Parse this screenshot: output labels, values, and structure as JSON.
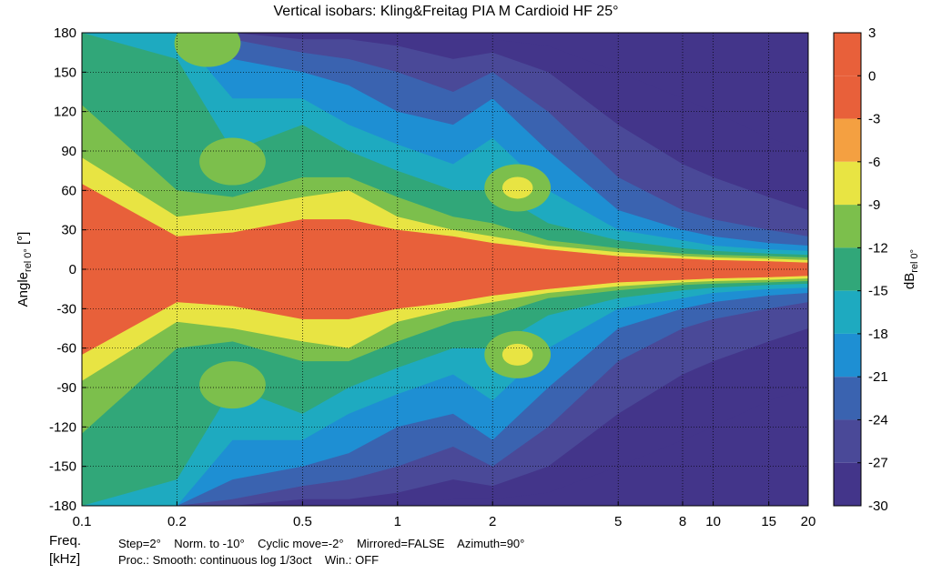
{
  "chart_data": {
    "type": "heatmap",
    "title": "Vertical isobars: Kling&Freitag  PIA M  Cardioid HF 25°",
    "xlabel": "Freq.",
    "xlabel_unit": "[kHz]",
    "ylabel_main": "Angle",
    "ylabel_sub": "rel 0°",
    "ylabel_unit": " [°]",
    "x_scale": "log",
    "xlim": [
      0.1,
      20
    ],
    "ylim": [
      -180,
      180
    ],
    "x_ticks": [
      0.1,
      0.2,
      0.5,
      1,
      2,
      5,
      8,
      10,
      15,
      20
    ],
    "x_tick_labels": [
      "0.1",
      "0.2",
      "0.5",
      "1",
      "2",
      "5",
      "8",
      "10",
      "15",
      "20"
    ],
    "y_ticks": [
      180,
      150,
      120,
      90,
      60,
      30,
      0,
      -30,
      -60,
      -90,
      -120,
      -150,
      -180
    ],
    "y_tick_labels": [
      "180",
      "150",
      "120",
      "90",
      "60",
      "30",
      "0",
      "-30",
      "-60",
      "-90",
      "-120",
      "-150",
      "-180"
    ],
    "grid": true,
    "colorbar": {
      "label_main": "dB",
      "label_sub": "rel 0°",
      "ticks": [
        3,
        0,
        -3,
        -6,
        -9,
        -12,
        -15,
        -18,
        -21,
        -24,
        -27,
        -30
      ],
      "tick_labels": [
        "3",
        "0",
        "-3",
        "-6",
        "-9",
        "-12",
        "-15",
        "-18",
        "-21",
        "-24",
        "-27",
        "-30"
      ],
      "levels": [
        {
          "range": [
            0,
            3
          ],
          "color": "#e8603a"
        },
        {
          "range": [
            -3,
            0
          ],
          "color": "#e8603a"
        },
        {
          "range": [
            -6,
            -3
          ],
          "color": "#f4a041"
        },
        {
          "range": [
            -9,
            -6
          ],
          "color": "#e8e443"
        },
        {
          "range": [
            -12,
            -9
          ],
          "color": "#7cbf4c"
        },
        {
          "range": [
            -15,
            -12
          ],
          "color": "#31a779"
        },
        {
          "range": [
            -18,
            -15
          ],
          "color": "#1eaac0"
        },
        {
          "range": [
            -21,
            -18
          ],
          "color": "#1e8fd3"
        },
        {
          "range": [
            -24,
            -21
          ],
          "color": "#3a63b0"
        },
        {
          "range": [
            -27,
            -24
          ],
          "color": "#4a4998"
        },
        {
          "range": [
            -30,
            -27
          ],
          "color": "#43358a"
        }
      ]
    },
    "contour_data": {
      "description_units": "angle half-width in degrees of each level band per frequency (kHz)",
      "freq": [
        0.1,
        0.2,
        0.3,
        0.5,
        0.7,
        1,
        1.5,
        2,
        3,
        5,
        8,
        10,
        15,
        20
      ],
      "bands": [
        {
          "level": -3,
          "halfwidth": [
            65,
            25,
            28,
            38,
            38,
            30,
            25,
            20,
            15,
            10,
            8,
            7,
            6,
            5
          ]
        },
        {
          "level": -6,
          "halfwidth": [
            85,
            40,
            45,
            55,
            60,
            40,
            30,
            25,
            18,
            13,
            10,
            9,
            8,
            7
          ]
        },
        {
          "level": -9,
          "halfwidth": [
            125,
            60,
            55,
            70,
            70,
            55,
            40,
            35,
            22,
            16,
            12,
            11,
            10,
            9
          ]
        },
        {
          "level": -12,
          "halfwidth": [
            180,
            160,
            90,
            110,
            90,
            75,
            60,
            60,
            35,
            22,
            16,
            14,
            12,
            11
          ]
        },
        {
          "level": -15,
          "halfwidth": [
            180,
            180,
            130,
            130,
            110,
            95,
            80,
            100,
            60,
            30,
            22,
            18,
            15,
            14
          ]
        },
        {
          "level": -18,
          "halfwidth": [
            180,
            180,
            160,
            150,
            140,
            120,
            110,
            130,
            90,
            45,
            30,
            25,
            20,
            18
          ]
        },
        {
          "level": -21,
          "halfwidth": [
            180,
            180,
            175,
            165,
            160,
            150,
            135,
            150,
            120,
            70,
            45,
            38,
            30,
            25
          ]
        },
        {
          "level": -24,
          "halfwidth": [
            180,
            180,
            180,
            175,
            175,
            170,
            160,
            165,
            150,
            110,
            80,
            70,
            55,
            45
          ]
        },
        {
          "level": -27,
          "halfwidth": [
            180,
            180,
            180,
            180,
            180,
            180,
            175,
            175,
            170,
            150,
            130,
            120,
            100,
            90
          ]
        }
      ],
      "side_lobes": [
        {
          "freq": 0.3,
          "angle": 82,
          "level": -9
        },
        {
          "freq": 0.3,
          "angle": -88,
          "level": -9
        },
        {
          "freq": 0.25,
          "angle": 172,
          "level": -9
        },
        {
          "freq": 2.4,
          "angle": 62,
          "level": -9
        },
        {
          "freq": 2.4,
          "angle": -65,
          "level": -9
        },
        {
          "freq": 2.4,
          "angle": 62,
          "level": -6
        },
        {
          "freq": 2.4,
          "angle": -65,
          "level": -6
        }
      ]
    }
  },
  "footer": {
    "freq_label": "Freq.",
    "unit_label": "[kHz]",
    "line1": "Step=2°    Norm. to -10°    Cyclic move=-2°    Mirrored=FALSE    Azimuth=90°",
    "line2": "Proc.: Smooth: continuous log 1/3oct    Win.: OFF"
  }
}
